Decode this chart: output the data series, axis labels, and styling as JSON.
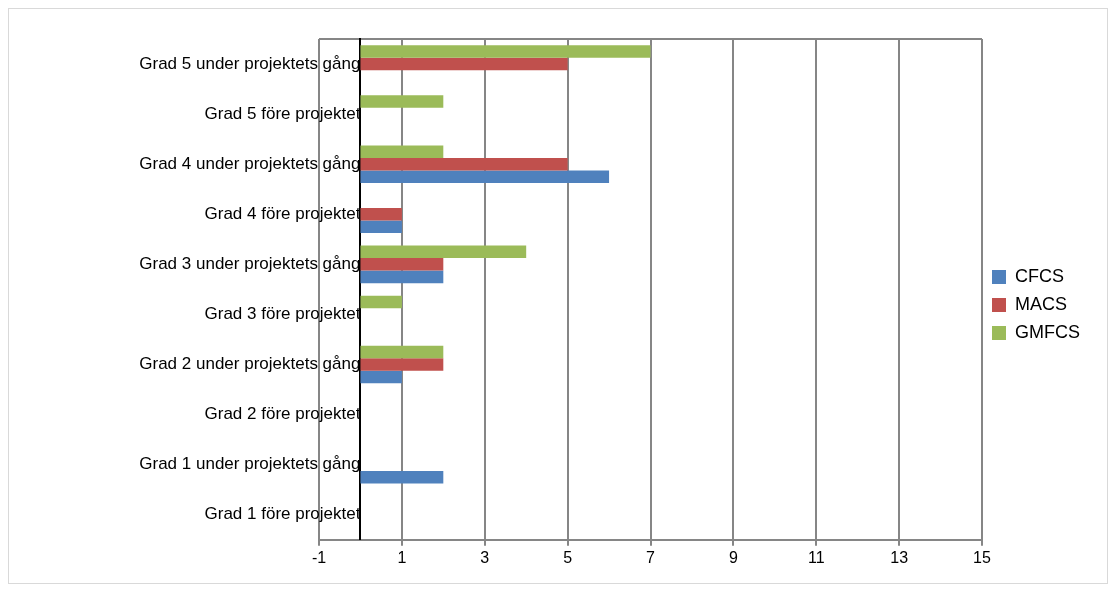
{
  "chart_data": {
    "type": "bar",
    "orientation": "horizontal",
    "categories": [
      "Grad 5 under projektets gång",
      "Grad 5 före projektet",
      "Grad 4 under projektets gång",
      "Grad 4 före projektet",
      "Grad 3 under projektets gång",
      "Grad 3 före projektet",
      "Grad 2 under projektets gång",
      "Grad 2 före projektet",
      "Grad 1 under projektets gång",
      "Grad 1 före projektet"
    ],
    "series": [
      {
        "name": "CFCS",
        "color": "#4f81bd",
        "values": [
          0,
          0,
          6,
          1,
          2,
          0,
          1,
          0,
          2,
          0
        ]
      },
      {
        "name": "MACS",
        "color": "#c0504d",
        "values": [
          5,
          0,
          5,
          1,
          2,
          0,
          2,
          0,
          0,
          0
        ]
      },
      {
        "name": "GMFCS",
        "color": "#9bbb59",
        "values": [
          7,
          2,
          2,
          0,
          4,
          1,
          2,
          0,
          0,
          0
        ]
      }
    ],
    "xlim": [
      -1,
      15
    ],
    "xticks": [
      -1,
      1,
      3,
      5,
      7,
      9,
      11,
      13,
      15
    ],
    "grid": "x",
    "legend": "right"
  }
}
